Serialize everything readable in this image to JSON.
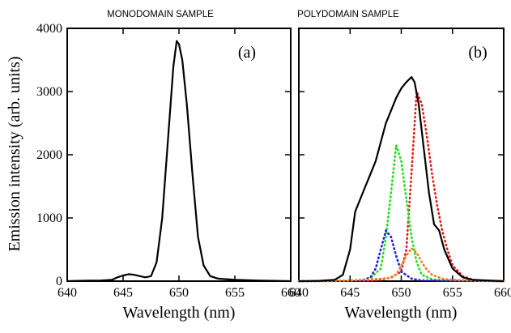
{
  "y_axis_label": "Emission intensity (arb. units)",
  "chart_data": [
    {
      "type": "line",
      "title": "MONODOMAIN SAMPLE",
      "panel_label": "(a)",
      "xlabel": "Wavelength (nm)",
      "ylabel": "Emission intensity (arb. units)",
      "xlim": [
        640,
        660
      ],
      "ylim": [
        0,
        4000
      ],
      "xticks": [
        640,
        645,
        650,
        655,
        660
      ],
      "yticks": [
        0,
        1000,
        2000,
        3000,
        4000
      ],
      "grid": false,
      "series": [
        {
          "color": "#000000",
          "style": "solid",
          "points": [
            [
              640,
              0
            ],
            [
              641,
              5
            ],
            [
              642,
              8
            ],
            [
              643,
              10
            ],
            [
              644,
              20
            ],
            [
              644.5,
              60
            ],
            [
              645,
              90
            ],
            [
              645.5,
              110
            ],
            [
              646,
              100
            ],
            [
              646.5,
              80
            ],
            [
              647,
              60
            ],
            [
              647.5,
              80
            ],
            [
              648,
              300
            ],
            [
              648.5,
              1000
            ],
            [
              649,
              2200
            ],
            [
              649.5,
              3400
            ],
            [
              649.8,
              3800
            ],
            [
              650,
              3750
            ],
            [
              650.3,
              3500
            ],
            [
              650.7,
              2800
            ],
            [
              651.2,
              1700
            ],
            [
              651.7,
              700
            ],
            [
              652.2,
              250
            ],
            [
              652.8,
              80
            ],
            [
              653.5,
              40
            ],
            [
              655,
              20
            ],
            [
              657,
              10
            ],
            [
              660,
              0
            ]
          ]
        }
      ]
    },
    {
      "type": "line",
      "title": "POLYDOMAIN SAMPLE",
      "panel_label": "(b)",
      "xlabel": "Wavelength (nm)",
      "xlim": [
        640,
        660
      ],
      "ylim": [
        0,
        4000
      ],
      "xticks": [
        640,
        645,
        650,
        655,
        660
      ],
      "yticks": [
        0,
        1000,
        2000,
        3000,
        4000
      ],
      "grid": false,
      "series": [
        {
          "color": "#000000",
          "style": "solid",
          "points": [
            [
              640,
              0
            ],
            [
              642,
              5
            ],
            [
              643.5,
              20
            ],
            [
              644.3,
              100
            ],
            [
              645,
              500
            ],
            [
              645.5,
              1100
            ],
            [
              646,
              1300
            ],
            [
              646.5,
              1500
            ],
            [
              647,
              1700
            ],
            [
              647.5,
              1900
            ],
            [
              648,
              2200
            ],
            [
              648.5,
              2500
            ],
            [
              649,
              2700
            ],
            [
              649.5,
              2900
            ],
            [
              650,
              3050
            ],
            [
              650.5,
              3150
            ],
            [
              651,
              3230
            ],
            [
              651.3,
              3150
            ],
            [
              651.7,
              2800
            ],
            [
              652.2,
              2100
            ],
            [
              652.7,
              1400
            ],
            [
              653.2,
              900
            ],
            [
              653.7,
              800
            ],
            [
              654.2,
              500
            ],
            [
              655,
              200
            ],
            [
              656,
              60
            ],
            [
              657,
              20
            ],
            [
              660,
              0
            ]
          ]
        },
        {
          "color": "#e02020",
          "style": "dotted",
          "points": [
            [
              640,
              0
            ],
            [
              647,
              5
            ],
            [
              648,
              20
            ],
            [
              649,
              60
            ],
            [
              650,
              150
            ],
            [
              650.5,
              500
            ],
            [
              651,
              1700
            ],
            [
              651.5,
              3000
            ],
            [
              652,
              2800
            ],
            [
              652.5,
              2300
            ],
            [
              653,
              1700
            ],
            [
              653.5,
              1200
            ],
            [
              654,
              800
            ],
            [
              654.5,
              500
            ],
            [
              655,
              250
            ],
            [
              656,
              80
            ],
            [
              657,
              20
            ],
            [
              658,
              5
            ],
            [
              660,
              0
            ]
          ]
        },
        {
          "color": "#22dd22",
          "style": "dotted",
          "points": [
            [
              640,
              0
            ],
            [
              646,
              10
            ],
            [
              647,
              50
            ],
            [
              648,
              200
            ],
            [
              648.5,
              700
            ],
            [
              649,
              1400
            ],
            [
              649.5,
              2150
            ],
            [
              650,
              1900
            ],
            [
              650.5,
              1300
            ],
            [
              651,
              700
            ],
            [
              651.5,
              300
            ],
            [
              652,
              100
            ],
            [
              653,
              30
            ],
            [
              654,
              10
            ],
            [
              660,
              0
            ]
          ]
        },
        {
          "color": "#2020dd",
          "style": "dotted",
          "points": [
            [
              640,
              0
            ],
            [
              646,
              5
            ],
            [
              647,
              60
            ],
            [
              647.5,
              200
            ],
            [
              648,
              500
            ],
            [
              648.5,
              800
            ],
            [
              649,
              700
            ],
            [
              649.5,
              400
            ],
            [
              650,
              150
            ],
            [
              651,
              40
            ],
            [
              652,
              10
            ],
            [
              660,
              0
            ]
          ]
        },
        {
          "color": "#f08020",
          "style": "dotted",
          "points": [
            [
              640,
              0
            ],
            [
              643,
              5
            ],
            [
              645,
              10
            ],
            [
              646,
              20
            ],
            [
              647,
              30
            ],
            [
              648,
              40
            ],
            [
              649,
              50
            ],
            [
              649.5,
              100
            ],
            [
              650,
              250
            ],
            [
              650.5,
              400
            ],
            [
              651,
              520
            ],
            [
              651.5,
              450
            ],
            [
              652,
              300
            ],
            [
              652.5,
              180
            ],
            [
              653,
              100
            ],
            [
              654,
              40
            ],
            [
              655,
              20
            ],
            [
              657,
              10
            ],
            [
              660,
              0
            ]
          ]
        }
      ]
    }
  ]
}
